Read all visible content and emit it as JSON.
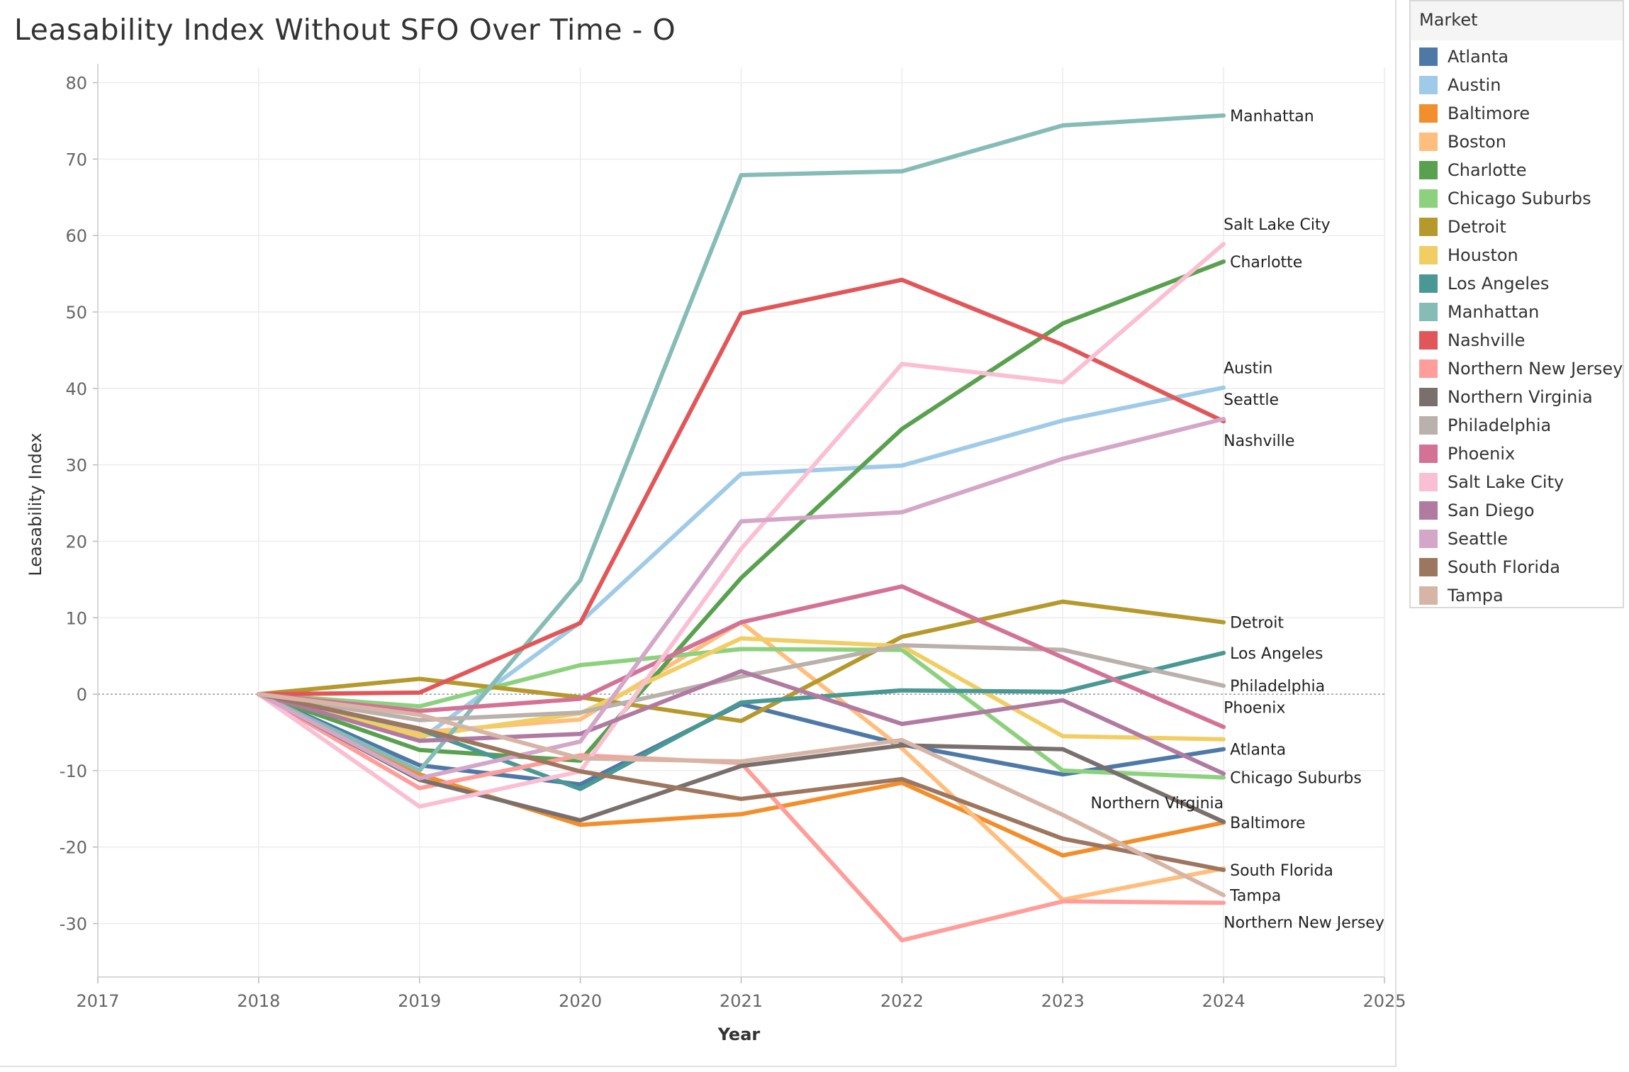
{
  "chart_data": {
    "type": "line",
    "title": "Leasability Index Without SFO Over Time - O",
    "xlabel": "Year",
    "ylabel": "Leasability Index",
    "xlim": [
      2017,
      2025
    ],
    "ylim": [
      -37,
      82
    ],
    "x_ticks": [
      "2017",
      "2018",
      "2019",
      "2020",
      "2021",
      "2022",
      "2023",
      "2024",
      "2025"
    ],
    "y_ticks": [
      "80",
      "70",
      "60",
      "50",
      "40",
      "30",
      "20",
      "10",
      "0",
      "-10",
      "-20",
      "-30"
    ],
    "grid": true,
    "zero_line": true,
    "legend_title": "Market",
    "legend_position": "right",
    "x": [
      2018,
      2019,
      2020,
      2021,
      2022,
      2023,
      2024
    ],
    "series": [
      {
        "name": "Atlanta",
        "color": "#4e79a7",
        "values": [
          0,
          -9.3,
          -11.8,
          -1.3,
          -6.6,
          -10.5,
          -7.2
        ]
      },
      {
        "name": "Austin",
        "color": "#a0cbe8",
        "values": [
          0,
          -6,
          9.4,
          28.8,
          29.9,
          35.8,
          40.1
        ]
      },
      {
        "name": "Baltimore",
        "color": "#f28e2b",
        "values": [
          0,
          -10.5,
          -17.1,
          -15.7,
          -11.6,
          -21.1,
          -16.8
        ]
      },
      {
        "name": "Boston",
        "color": "#ffbe7d",
        "values": [
          0,
          -5,
          -3.3,
          9.4,
          -7.1,
          -26.9,
          -22.8
        ]
      },
      {
        "name": "Charlotte",
        "color": "#59a14f",
        "values": [
          0,
          -7.3,
          -8.7,
          15.2,
          34.7,
          48.5,
          56.6
        ]
      },
      {
        "name": "Chicago Suburbs",
        "color": "#8cd17d",
        "values": [
          0,
          -1.6,
          3.8,
          5.9,
          5.8,
          -10,
          -10.9
        ]
      },
      {
        "name": "Detroit",
        "color": "#b6992d",
        "values": [
          0,
          2,
          -0.4,
          -3.5,
          7.5,
          12.1,
          9.4
        ]
      },
      {
        "name": "Houston",
        "color": "#f1ce63",
        "values": [
          0,
          -5.5,
          -2.5,
          7.3,
          6.3,
          -5.5,
          -5.9
        ]
      },
      {
        "name": "Los Angeles",
        "color": "#499894",
        "values": [
          0,
          -4.6,
          -12.4,
          -1.1,
          0.5,
          0.3,
          5.4
        ]
      },
      {
        "name": "Manhattan",
        "color": "#86bcb6",
        "values": [
          0,
          -10,
          14.9,
          67.9,
          68.4,
          74.4,
          75.7
        ]
      },
      {
        "name": "Nashville",
        "color": "#e15759",
        "values": [
          0,
          0.2,
          9.3,
          49.8,
          54.2,
          45.7,
          35.7
        ]
      },
      {
        "name": "Northern New Jersey",
        "color": "#ff9d9a",
        "values": [
          0,
          -12.3,
          -8,
          -9,
          -32.2,
          -27.1,
          -27.3
        ]
      },
      {
        "name": "Northern Virginia",
        "color": "#79706e",
        "values": [
          0,
          -11.2,
          -16.5,
          -9.4,
          -6.7,
          -7.2,
          -16.7
        ]
      },
      {
        "name": "Philadelphia",
        "color": "#bab0ac",
        "values": [
          0,
          -3.4,
          -2.4,
          2.3,
          6.4,
          5.8,
          1.1
        ]
      },
      {
        "name": "Phoenix",
        "color": "#d37295",
        "values": [
          0,
          -2.2,
          -0.6,
          9.4,
          14.1,
          4.8,
          -4.3
        ]
      },
      {
        "name": "Salt Lake City",
        "color": "#fabfd2",
        "values": [
          0,
          -14.7,
          -10.1,
          19,
          43.2,
          40.8,
          58.9
        ]
      },
      {
        "name": "San Diego",
        "color": "#b07aa1",
        "values": [
          0,
          -6.1,
          -5.2,
          3,
          -3.9,
          -0.8,
          -10.4
        ]
      },
      {
        "name": "Seattle",
        "color": "#d4a6c8",
        "values": [
          0,
          -11,
          -6.2,
          22.6,
          23.8,
          30.8,
          36
        ]
      },
      {
        "name": "South Florida",
        "color": "#9d7660",
        "values": [
          0,
          -4.5,
          -10.1,
          -13.7,
          -11.1,
          -18.9,
          -23
        ]
      },
      {
        "name": "Tampa",
        "color": "#d7b5a6",
        "values": [
          0,
          -2.7,
          -8.4,
          -8.8,
          -6,
          -15.8,
          -26.3
        ]
      }
    ],
    "end_labels": [
      {
        "text": "Manhattan",
        "series": "Manhattan",
        "placement": "right"
      },
      {
        "text": "Salt Lake City",
        "series": "Salt Lake City",
        "placement": "above"
      },
      {
        "text": "Charlotte",
        "series": "Charlotte",
        "placement": "right"
      },
      {
        "text": "Austin",
        "series": "Austin",
        "placement": "above"
      },
      {
        "text": "Seattle",
        "series": "Seattle",
        "placement": "above"
      },
      {
        "text": "Nashville",
        "series": "Nashville",
        "placement": "below"
      },
      {
        "text": "Detroit",
        "series": "Detroit",
        "placement": "right"
      },
      {
        "text": "Los Angeles",
        "series": "Los Angeles",
        "placement": "right"
      },
      {
        "text": "Philadelphia",
        "series": "Philadelphia",
        "placement": "right"
      },
      {
        "text": "Phoenix",
        "series": "Phoenix",
        "placement": "above"
      },
      {
        "text": "Atlanta",
        "series": "Atlanta",
        "placement": "right"
      },
      {
        "text": "Chicago Suburbs",
        "series": "Chicago Suburbs",
        "placement": "right"
      },
      {
        "text": "Northern Virginia",
        "series": "Northern Virginia",
        "placement": "above-left"
      },
      {
        "text": "Baltimore",
        "series": "Baltimore",
        "placement": "right"
      },
      {
        "text": "South Florida",
        "series": "South Florida",
        "placement": "right"
      },
      {
        "text": "Tampa",
        "series": "Tampa",
        "placement": "right"
      },
      {
        "text": "Northern New Jersey",
        "series": "Northern New Jersey",
        "placement": "below"
      }
    ]
  }
}
